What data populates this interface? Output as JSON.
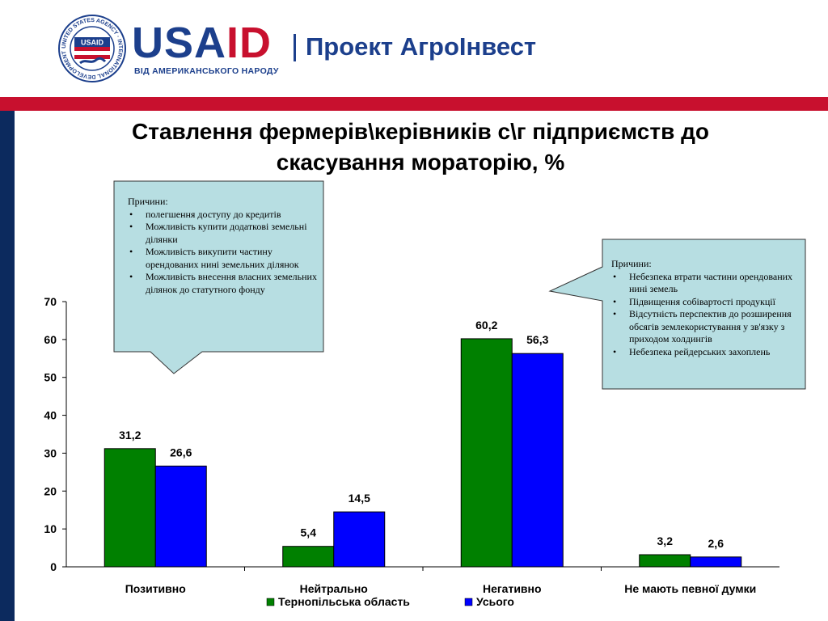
{
  "header": {
    "seal_text": "UNITED STATES AGENCY · INTERNATIONAL DEVELOPMENT",
    "seal_center": "USAID",
    "logo_usa": "USA",
    "logo_id": "ID",
    "logo_tagline": "ВІД АМЕРИКАНСЬКОГО НАРОДУ",
    "project_name": "Проект АгроІнвест"
  },
  "title_line1": "Ставлення фермерів\\керівників с\\г підприємств до",
  "title_line2": "скасування мораторію, %",
  "callouts": [
    {
      "heading": "Причини:",
      "items": [
        "полегшення доступу до кредитів",
        "Можливість купити додаткові земельні ділянки",
        "Можливість викупити частину орендованих нині земельних ділянок",
        "Можливість внесення власних земельних ділянок до статутного фонду"
      ]
    },
    {
      "heading": "Причини:",
      "items": [
        "Небезпека втрати частини орендованих нині земель",
        "Підвищення собівартості продукції",
        "Відсутність перспектив до розширення обсягів землекористування у зв'язку з приходом холдингів",
        "Небезпека рейдерських захоплень"
      ]
    }
  ],
  "chart_data": {
    "type": "bar",
    "categories": [
      "Позитивно",
      "Нейтрально",
      "Негативно",
      "Не мають певної думки"
    ],
    "series": [
      {
        "name": "Тернопільська область",
        "values": [
          31.2,
          5.4,
          60.2,
          3.2
        ],
        "labels": [
          "31,2",
          "5,4",
          "60,2",
          "3,2"
        ],
        "color": "#008000"
      },
      {
        "name": "Усього",
        "values": [
          26.6,
          14.5,
          56.3,
          2.6
        ],
        "labels": [
          "26,6",
          "14,5",
          "56,3",
          "2,6"
        ],
        "color": "#0000ff"
      }
    ],
    "ylim": [
      0,
      70
    ],
    "yticks": [
      0,
      10,
      20,
      30,
      40,
      50,
      60,
      70
    ],
    "grid": false,
    "legend_position": "bottom",
    "title": "",
    "xlabel": "",
    "ylabel": ""
  },
  "colors": {
    "callout_fill": "#b7dee2",
    "brand_blue": "#1c3f8c",
    "brand_red": "#c8102e",
    "sidebar_navy": "#0c2a5e"
  }
}
